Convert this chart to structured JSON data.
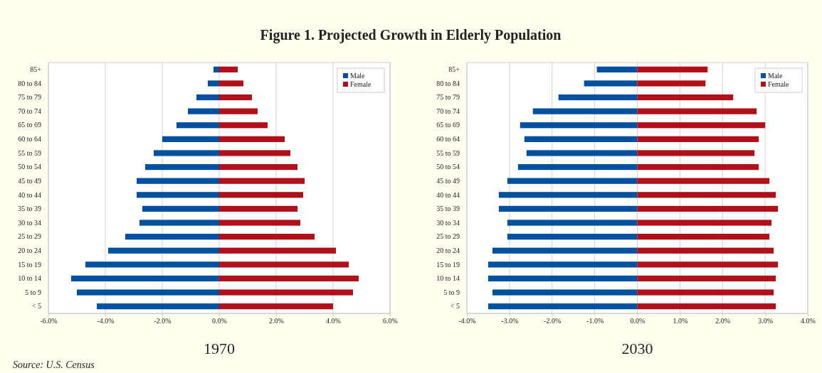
{
  "chart_data": [
    {
      "type": "bar",
      "orientation": "horizontal",
      "stacked": true,
      "title": "Figure 1. Projected Growth in Elderly Population",
      "xlabel": "1970",
      "categories": [
        "85+",
        "80 to 84",
        "75 to 79",
        "70 to 74",
        "65 to 69",
        "60 to 64",
        "55 to 59",
        "50 to 54",
        "45 to 49",
        "40 to 44",
        "35 to 39",
        "30 to 34",
        "25 to 29",
        "20 to 24",
        "15 to 19",
        "10 to 14",
        "5 to 9",
        "< 5"
      ],
      "series": [
        {
          "name": "Male",
          "color": "#0050a0",
          "values": [
            -0.2,
            -0.4,
            -0.8,
            -1.1,
            -1.5,
            -2.0,
            -2.3,
            -2.6,
            -2.9,
            -2.9,
            -2.7,
            -2.8,
            -3.3,
            -3.9,
            -4.7,
            -5.2,
            -5.0,
            -4.3
          ]
        },
        {
          "name": "Female",
          "color": "#b0101a",
          "values": [
            0.65,
            0.85,
            1.15,
            1.35,
            1.7,
            2.3,
            2.5,
            2.75,
            3.0,
            2.95,
            2.75,
            2.85,
            3.35,
            4.1,
            4.55,
            4.9,
            4.7,
            4.0
          ]
        }
      ],
      "xlim": [
        -6,
        6
      ],
      "xticks": [
        {
          "value": -6,
          "label": "-6.0%"
        },
        {
          "value": -4,
          "label": "-4.0%"
        },
        {
          "value": -2,
          "label": "-2.0%"
        },
        {
          "value": 0,
          "label": "0.0%"
        },
        {
          "value": 2,
          "label": "2.0%"
        },
        {
          "value": 4,
          "label": "4.0%"
        },
        {
          "value": 6,
          "label": "6.0%"
        }
      ],
      "grid": "x",
      "legend": "top right",
      "annotations": [
        "Source: U.S. Census"
      ]
    },
    {
      "type": "bar",
      "orientation": "horizontal",
      "stacked": true,
      "xlabel": "2030",
      "categories": [
        "85+",
        "80 to 84",
        "75 to 79",
        "70 to 74",
        "65 to 69",
        "60 to 64",
        "55 to 59",
        "50 to 54",
        "45 to 49",
        "40 to 44",
        "35 to 39",
        "30 to 34",
        "25 to 29",
        "20 to 24",
        "15 to 19",
        "10 to 14",
        "5 to 9",
        "< 5"
      ],
      "series": [
        {
          "name": "Male",
          "color": "#0050a0",
          "values": [
            -0.95,
            -1.25,
            -1.85,
            -2.45,
            -2.75,
            -2.65,
            -2.6,
            -2.8,
            -3.05,
            -3.25,
            -3.25,
            -3.05,
            -3.05,
            -3.4,
            -3.5,
            -3.5,
            -3.4,
            -3.5
          ]
        },
        {
          "name": "Female",
          "color": "#b0101a",
          "values": [
            1.65,
            1.6,
            2.25,
            2.8,
            3.0,
            2.85,
            2.75,
            2.85,
            3.1,
            3.25,
            3.3,
            3.15,
            3.1,
            3.2,
            3.3,
            3.25,
            3.2,
            3.25
          ]
        }
      ],
      "xlim": [
        -4,
        4
      ],
      "xticks": [
        {
          "value": -4,
          "label": "-4.0%"
        },
        {
          "value": -3,
          "label": "-3.0%"
        },
        {
          "value": -2,
          "label": "-2.0%"
        },
        {
          "value": -1,
          "label": "-1.0%"
        },
        {
          "value": 0,
          "label": "0.0%"
        },
        {
          "value": 1,
          "label": "1.0%"
        },
        {
          "value": 2,
          "label": "2.0%"
        },
        {
          "value": 3,
          "label": "3.0%"
        },
        {
          "value": 4,
          "label": "4.0%"
        }
      ],
      "grid": "x",
      "legend": "top right"
    }
  ]
}
